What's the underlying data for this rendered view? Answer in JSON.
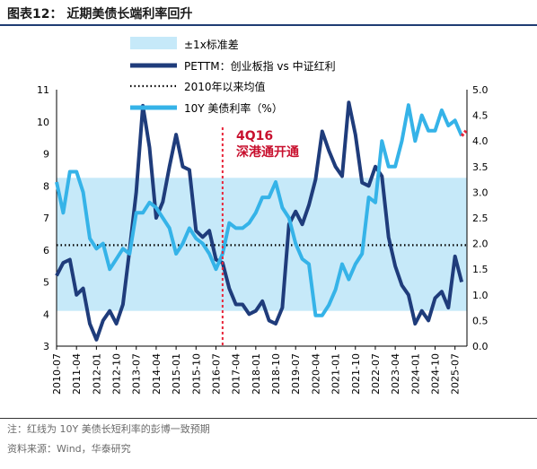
{
  "header": {
    "title": "图表12：  近期美债长端利率回升"
  },
  "footer": {
    "note": "注：红线为 10Y 美债长短利率的彭博一致预期",
    "source": "资料来源：Wind，华泰研究"
  },
  "chart_data": {
    "type": "line",
    "legend": [
      "±1x标准差",
      "PETTM：创业板指 vs 中证红利",
      "2010年以来均值",
      "10Y 美债利率（%）"
    ],
    "annotation": {
      "line1": "4Q16",
      "line2": "深港通开通",
      "at": "2016-10"
    },
    "x_ticks": [
      "2010-07",
      "2011-04",
      "2012-01",
      "2012-10",
      "2013-07",
      "2014-04",
      "2015-01",
      "2015-10",
      "2016-07",
      "2017-04",
      "2018-01",
      "2018-10",
      "2019-07",
      "2020-04",
      "2021-01",
      "2021-10",
      "2022-07",
      "2023-04",
      "2024-01",
      "2024-10",
      "2025-07"
    ],
    "left_axis": {
      "ylim": [
        3,
        11
      ],
      "ticks": [
        "3",
        "4",
        "5",
        "6",
        "7",
        "8",
        "9",
        "10",
        "11"
      ]
    },
    "right_axis": {
      "ylim": [
        0,
        5
      ],
      "ticks": [
        "0.0",
        "0.5",
        "1.0",
        "1.5",
        "2.0",
        "2.5",
        "3.0",
        "3.5",
        "4.0",
        "4.5",
        "5.0"
      ]
    },
    "band": {
      "lower": 4.1,
      "upper": 8.25
    },
    "mean": 6.15,
    "series": [
      {
        "name": "PETTM：创业板指 vs 中证红利",
        "axis": "left",
        "color": "#1f3c7b",
        "points": [
          [
            "2010-07",
            5.2
          ],
          [
            "2010-10",
            5.6
          ],
          [
            "2011-01",
            5.7
          ],
          [
            "2011-04",
            4.6
          ],
          [
            "2011-07",
            4.8
          ],
          [
            "2011-10",
            3.7
          ],
          [
            "2012-01",
            3.2
          ],
          [
            "2012-04",
            3.8
          ],
          [
            "2012-07",
            4.1
          ],
          [
            "2012-10",
            3.7
          ],
          [
            "2013-01",
            4.3
          ],
          [
            "2013-04",
            6.0
          ],
          [
            "2013-07",
            7.8
          ],
          [
            "2013-10",
            10.5
          ],
          [
            "2014-01",
            9.2
          ],
          [
            "2014-04",
            7.0
          ],
          [
            "2014-07",
            7.5
          ],
          [
            "2014-10",
            8.6
          ],
          [
            "2015-01",
            9.6
          ],
          [
            "2015-04",
            8.6
          ],
          [
            "2015-07",
            8.5
          ],
          [
            "2015-10",
            6.6
          ],
          [
            "2016-01",
            6.4
          ],
          [
            "2016-04",
            6.6
          ],
          [
            "2016-07",
            5.7
          ],
          [
            "2016-10",
            5.6
          ],
          [
            "2017-01",
            4.8
          ],
          [
            "2017-04",
            4.3
          ],
          [
            "2017-07",
            4.3
          ],
          [
            "2017-10",
            4.0
          ],
          [
            "2018-01",
            4.1
          ],
          [
            "2018-04",
            4.4
          ],
          [
            "2018-07",
            3.8
          ],
          [
            "2018-10",
            3.7
          ],
          [
            "2019-01",
            4.2
          ],
          [
            "2019-04",
            6.8
          ],
          [
            "2019-07",
            7.2
          ],
          [
            "2019-10",
            6.8
          ],
          [
            "2020-01",
            7.4
          ],
          [
            "2020-04",
            8.2
          ],
          [
            "2020-07",
            9.7
          ],
          [
            "2020-10",
            9.1
          ],
          [
            "2021-01",
            8.6
          ],
          [
            "2021-04",
            8.3
          ],
          [
            "2021-07",
            10.6
          ],
          [
            "2021-10",
            9.6
          ],
          [
            "2022-01",
            8.1
          ],
          [
            "2022-04",
            8.0
          ],
          [
            "2022-07",
            8.6
          ],
          [
            "2022-10",
            8.3
          ],
          [
            "2023-01",
            6.4
          ],
          [
            "2023-04",
            5.5
          ],
          [
            "2023-07",
            4.9
          ],
          [
            "2023-10",
            4.6
          ],
          [
            "2024-01",
            3.7
          ],
          [
            "2024-04",
            4.1
          ],
          [
            "2024-07",
            3.8
          ],
          [
            "2024-10",
            4.5
          ],
          [
            "2025-01",
            4.7
          ],
          [
            "2025-04",
            4.2
          ],
          [
            "2025-07",
            5.8
          ],
          [
            "2025-10",
            5.0
          ]
        ]
      },
      {
        "name": "10Y 美债利率（%）",
        "axis": "right",
        "color": "#35b3e8",
        "points": [
          [
            "2010-07",
            3.2
          ],
          [
            "2010-10",
            2.6
          ],
          [
            "2011-01",
            3.4
          ],
          [
            "2011-04",
            3.4
          ],
          [
            "2011-07",
            3.0
          ],
          [
            "2011-10",
            2.1
          ],
          [
            "2012-01",
            1.9
          ],
          [
            "2012-04",
            2.0
          ],
          [
            "2012-07",
            1.5
          ],
          [
            "2012-10",
            1.7
          ],
          [
            "2013-01",
            1.9
          ],
          [
            "2013-04",
            1.8
          ],
          [
            "2013-07",
            2.6
          ],
          [
            "2013-10",
            2.6
          ],
          [
            "2014-01",
            2.8
          ],
          [
            "2014-04",
            2.7
          ],
          [
            "2014-07",
            2.5
          ],
          [
            "2014-10",
            2.3
          ],
          [
            "2015-01",
            1.8
          ],
          [
            "2015-04",
            2.0
          ],
          [
            "2015-07",
            2.3
          ],
          [
            "2015-10",
            2.1
          ],
          [
            "2016-01",
            2.0
          ],
          [
            "2016-04",
            1.8
          ],
          [
            "2016-07",
            1.5
          ],
          [
            "2016-10",
            1.8
          ],
          [
            "2017-01",
            2.4
          ],
          [
            "2017-04",
            2.3
          ],
          [
            "2017-07",
            2.3
          ],
          [
            "2017-10",
            2.4
          ],
          [
            "2018-01",
            2.6
          ],
          [
            "2018-04",
            2.9
          ],
          [
            "2018-07",
            2.9
          ],
          [
            "2018-10",
            3.2
          ],
          [
            "2019-01",
            2.7
          ],
          [
            "2019-04",
            2.5
          ],
          [
            "2019-07",
            2.0
          ],
          [
            "2019-10",
            1.7
          ],
          [
            "2020-01",
            1.6
          ],
          [
            "2020-04",
            0.6
          ],
          [
            "2020-07",
            0.6
          ],
          [
            "2020-10",
            0.8
          ],
          [
            "2021-01",
            1.1
          ],
          [
            "2021-04",
            1.6
          ],
          [
            "2021-07",
            1.3
          ],
          [
            "2021-10",
            1.6
          ],
          [
            "2022-01",
            1.8
          ],
          [
            "2022-04",
            2.9
          ],
          [
            "2022-07",
            2.8
          ],
          [
            "2022-10",
            4.0
          ],
          [
            "2023-01",
            3.5
          ],
          [
            "2023-04",
            3.5
          ],
          [
            "2023-07",
            4.0
          ],
          [
            "2023-10",
            4.7
          ],
          [
            "2024-01",
            4.0
          ],
          [
            "2024-04",
            4.5
          ],
          [
            "2024-07",
            4.2
          ],
          [
            "2024-10",
            4.2
          ],
          [
            "2025-01",
            4.6
          ],
          [
            "2025-04",
            4.3
          ],
          [
            "2025-07",
            4.4
          ],
          [
            "2025-10",
            4.1
          ]
        ]
      }
    ],
    "forecast": {
      "axis": "right",
      "color": "#e8263b",
      "points": [
        [
          "2025-10",
          4.1
        ],
        [
          "2025-12",
          4.2
        ]
      ]
    }
  }
}
